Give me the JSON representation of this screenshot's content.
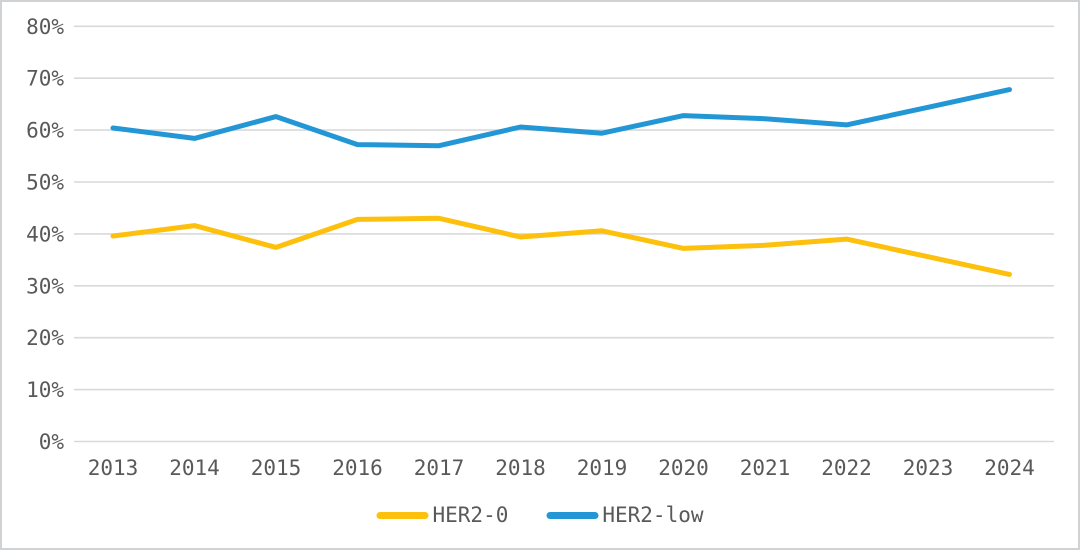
{
  "frame": {
    "background_color": "#ffffff",
    "border_color": "#cfd3d6"
  },
  "chart_data": {
    "type": "line",
    "x": [
      "2013",
      "2014",
      "2015",
      "2016",
      "2017",
      "2018",
      "2019",
      "2020",
      "2021",
      "2022",
      "2023",
      "2024"
    ],
    "series": [
      {
        "name": "HER2-0",
        "color": "#FDC00D",
        "values": [
          39.6,
          41.6,
          37.4,
          42.8,
          43.0,
          39.4,
          40.6,
          37.2,
          37.8,
          39.0,
          35.6,
          32.2
        ]
      },
      {
        "name": "HER2-low",
        "color": "#2397D5",
        "values": [
          60.4,
          58.4,
          62.6,
          57.2,
          57.0,
          60.6,
          59.4,
          62.8,
          62.2,
          61.0,
          64.4,
          67.8
        ]
      }
    ],
    "y_axis": {
      "min": 0,
      "max": 80,
      "step": 10,
      "tick_labels": [
        "0%",
        "10%",
        "20%",
        "30%",
        "40%",
        "50%",
        "60%",
        "70%",
        "80%"
      ],
      "unit": "%"
    },
    "x_axis": {
      "tick_labels": [
        "2013",
        "2014",
        "2015",
        "2016",
        "2017",
        "2018",
        "2019",
        "2020",
        "2021",
        "2022",
        "2023",
        "2024"
      ]
    },
    "grid": "horizontal",
    "gridline_color": "#d9d9d9",
    "label_color": "#595959",
    "legend_position": "bottom",
    "ylim": [
      0,
      80
    ]
  }
}
